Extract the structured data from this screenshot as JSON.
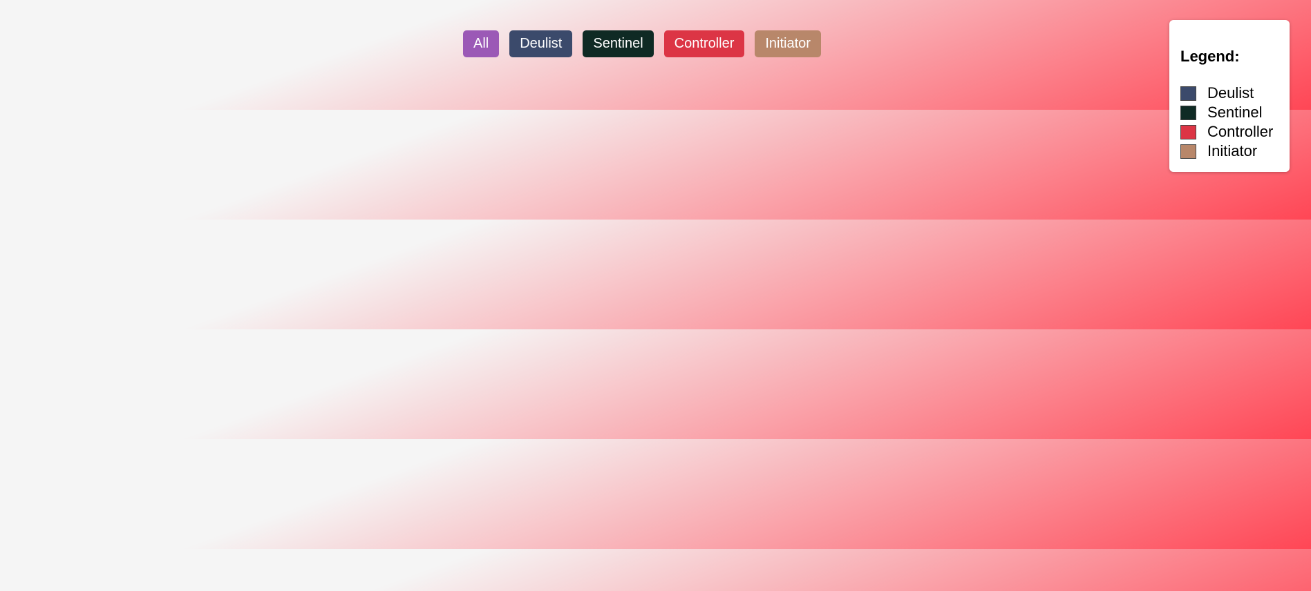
{
  "filters": [
    {
      "label": "All",
      "color": "#9b59b6"
    },
    {
      "label": "Deulist",
      "color": "#3b4a6b"
    },
    {
      "label": "Sentinel",
      "color": "#0f2a24"
    },
    {
      "label": "Controller",
      "color": "#dc3545"
    },
    {
      "label": "Initiator",
      "color": "#b8876a"
    }
  ],
  "legend": {
    "title": "Legend:",
    "items": [
      {
        "label": "Deulist",
        "color": "#3b4a6b"
      },
      {
        "label": "Sentinel",
        "color": "#0f2a24"
      },
      {
        "label": "Controller",
        "color": "#dc3545"
      },
      {
        "label": "Initiator",
        "color": "#b8876a"
      }
    ]
  },
  "theme": {
    "background": "#f5f5f5",
    "accent": "#ff4655"
  }
}
